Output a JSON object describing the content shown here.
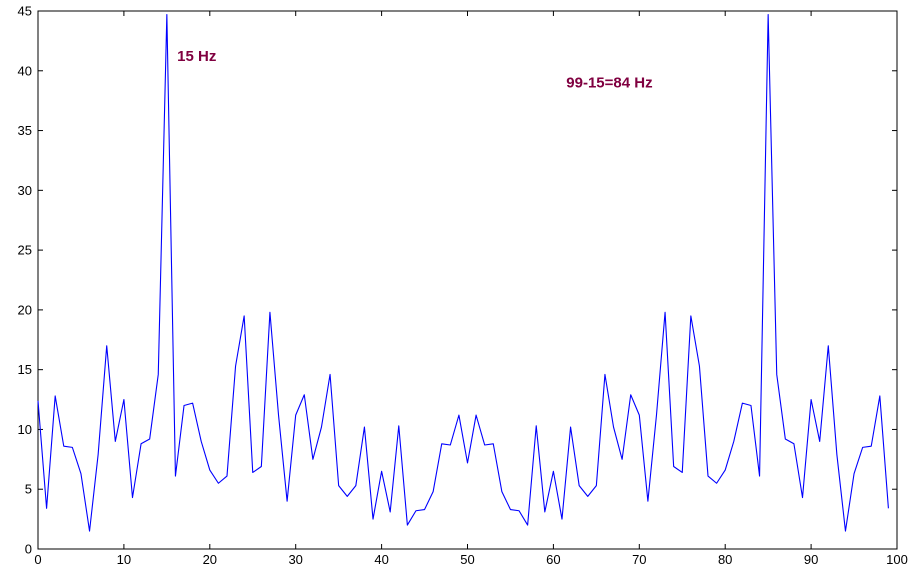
{
  "chart_data": {
    "type": "line",
    "title": "",
    "xlabel": "",
    "ylabel": "",
    "xlim": [
      0,
      100
    ],
    "ylim": [
      0,
      45
    ],
    "xticks": [
      0,
      10,
      20,
      30,
      40,
      50,
      60,
      70,
      80,
      90,
      100
    ],
    "yticks": [
      0,
      5,
      10,
      15,
      20,
      25,
      30,
      35,
      40,
      45
    ],
    "xtick_labels": [
      "0",
      "10",
      "20",
      "30",
      "40",
      "50",
      "60",
      "70",
      "80",
      "90",
      "100"
    ],
    "ytick_labels": [
      "0",
      "5",
      "10",
      "15",
      "20",
      "25",
      "30",
      "35",
      "40",
      "45"
    ],
    "grid": false,
    "series": [
      {
        "color": "#0000ff",
        "x": [
          0,
          1,
          2,
          3,
          4,
          5,
          6,
          7,
          8,
          9,
          10,
          11,
          12,
          13,
          14,
          15,
          16,
          17,
          18,
          19,
          20,
          21,
          22,
          23,
          24,
          25,
          26,
          27,
          28,
          29,
          30,
          31,
          32,
          33,
          34,
          35,
          36,
          37,
          38,
          39,
          40,
          41,
          42,
          43,
          44,
          45,
          46,
          47,
          48,
          49,
          50,
          51,
          52,
          53,
          54,
          55,
          56,
          57,
          58,
          59,
          60,
          61,
          62,
          63,
          64,
          65,
          66,
          67,
          68,
          69,
          70,
          71,
          72,
          73,
          74,
          75,
          76,
          77,
          78,
          79,
          80,
          81,
          82,
          83,
          84,
          85,
          86,
          87,
          88,
          89,
          90,
          91,
          92,
          93,
          94,
          95,
          96,
          97,
          98,
          99
        ],
        "y": [
          12.4,
          3.4,
          12.8,
          8.6,
          8.5,
          6.3,
          1.5,
          7.9,
          17.0,
          9.0,
          12.5,
          4.3,
          8.8,
          9.2,
          14.6,
          44.7,
          6.1,
          12.0,
          12.2,
          9.0,
          6.6,
          5.5,
          6.1,
          15.3,
          19.5,
          6.4,
          6.9,
          19.8,
          11.2,
          4.0,
          11.2,
          12.9,
          7.5,
          10.2,
          14.6,
          5.3,
          4.4,
          5.3,
          10.2,
          2.5,
          6.5,
          3.1,
          10.3,
          2.0,
          3.2,
          3.3,
          4.8,
          8.8,
          8.7,
          11.2,
          7.2,
          11.2,
          8.7,
          8.8,
          4.8,
          3.3,
          3.2,
          2.0,
          10.3,
          3.1,
          6.5,
          2.5,
          10.2,
          5.3,
          4.4,
          5.3,
          14.6,
          10.2,
          7.5,
          12.9,
          11.2,
          4.0,
          11.2,
          19.8,
          6.9,
          6.4,
          19.5,
          15.3,
          6.1,
          5.5,
          6.6,
          9.0,
          12.2,
          12.0,
          6.1,
          44.7,
          14.6,
          9.2,
          8.8,
          4.3,
          12.5,
          9.0,
          17.0,
          7.9,
          1.5,
          6.3,
          8.5,
          8.6,
          12.8,
          3.4
        ]
      }
    ],
    "annotations": [
      {
        "text": "15 Hz",
        "x": 16.2,
        "y": 40.8,
        "color": "#800040"
      },
      {
        "text": "99-15=84 Hz",
        "x": 61.5,
        "y": 38.6,
        "color": "#800040"
      }
    ]
  }
}
